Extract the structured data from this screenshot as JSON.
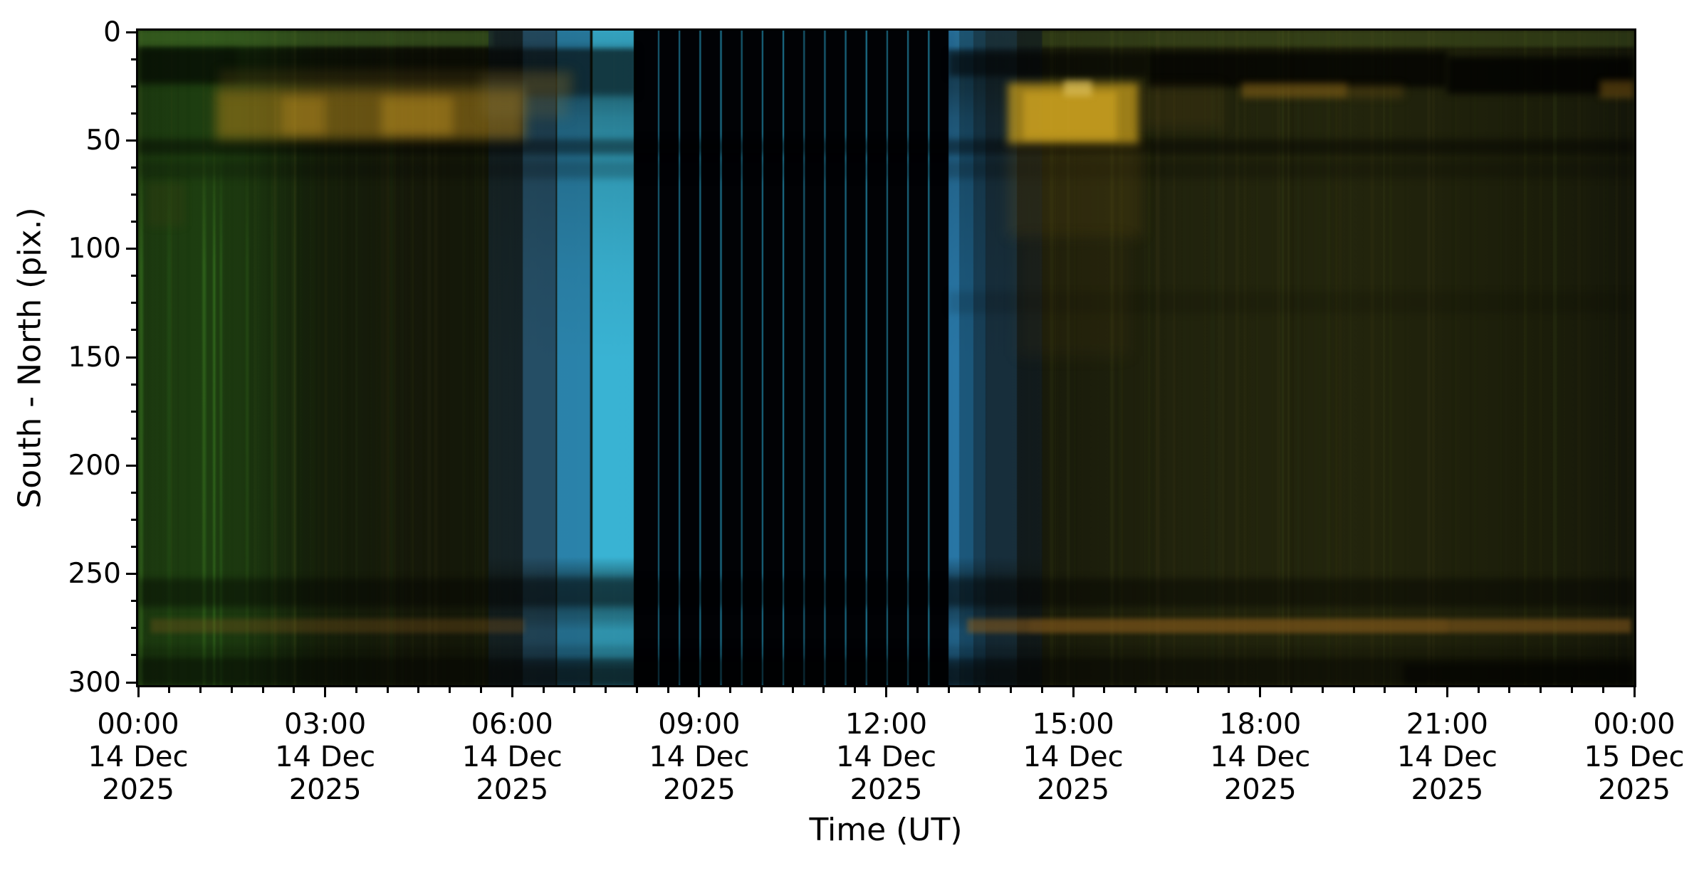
{
  "figure": {
    "background": "#ffffff",
    "spine_color": "#000000",
    "text_color": "#000000"
  },
  "chart_data": {
    "type": "heatmap",
    "subtype": "keogram",
    "title": "",
    "xlabel": "Time (UT)",
    "ylabel": "South - North (pix.)",
    "x_range_hours": [
      0,
      24
    ],
    "y_range": [
      0,
      301
    ],
    "grid": false,
    "x_ticks": [
      {
        "time": "00:00",
        "date": "14 Dec",
        "year": "2025",
        "hour": 0
      },
      {
        "time": "03:00",
        "date": "14 Dec",
        "year": "2025",
        "hour": 3
      },
      {
        "time": "06:00",
        "date": "14 Dec",
        "year": "2025",
        "hour": 6
      },
      {
        "time": "09:00",
        "date": "14 Dec",
        "year": "2025",
        "hour": 9
      },
      {
        "time": "12:00",
        "date": "14 Dec",
        "year": "2025",
        "hour": 12
      },
      {
        "time": "15:00",
        "date": "14 Dec",
        "year": "2025",
        "hour": 15
      },
      {
        "time": "18:00",
        "date": "14 Dec",
        "year": "2025",
        "hour": 18
      },
      {
        "time": "21:00",
        "date": "14 Dec",
        "year": "2025",
        "hour": 21
      },
      {
        "time": "00:00",
        "date": "15 Dec",
        "year": "2025",
        "hour": 24
      }
    ],
    "y_ticks": [
      0,
      50,
      100,
      150,
      200,
      250,
      300
    ],
    "axes": {
      "x_minor_step_hours": 0.5,
      "y_minor_step": 12.5
    },
    "features": {
      "background_stops": [
        [
          0,
          "#17290e"
        ],
        [
          1.1,
          "#1a3110"
        ],
        [
          2.6,
          "#15200b"
        ],
        [
          4.3,
          "#16190a"
        ],
        [
          5.6,
          "#141809"
        ],
        [
          7.9,
          "#0a0d06"
        ],
        [
          8.0,
          "#000000"
        ],
        [
          13.0,
          "#000000"
        ],
        [
          13.1,
          "#0e1008"
        ],
        [
          14.6,
          "#191b0b"
        ],
        [
          16.5,
          "#21230d"
        ],
        [
          19.5,
          "#23250d"
        ],
        [
          22.0,
          "#1d1f0b"
        ],
        [
          23.3,
          "#191b0a"
        ],
        [
          24,
          "#13150a"
        ]
      ],
      "green_glow": {
        "t0": 0,
        "t1": 2.8,
        "color": "#224c12",
        "alpha_stops": [
          [
            0,
            0.42
          ],
          [
            0.9,
            0.5
          ],
          [
            1.7,
            0.38
          ],
          [
            2.8,
            0
          ]
        ]
      },
      "green_streaks": [
        [
          0.05,
          6,
          0.28
        ],
        [
          1.06,
          5,
          0.3
        ],
        [
          1.22,
          3,
          0.45
        ],
        [
          1.33,
          2.5,
          0.35
        ],
        [
          0.5,
          6,
          0.12
        ],
        [
          1.75,
          4,
          0.15
        ],
        [
          2.15,
          3,
          0.12
        ],
        [
          2.5,
          2,
          0.08
        ]
      ],
      "green_streak_color": "#46a62c",
      "top_rows": [
        [
          0,
          5.7,
          "#4f7e2e",
          0.45
        ],
        [
          13.1,
          24,
          "#5c7c30",
          0.3
        ]
      ],
      "blue_profile": [
        [
          0,
          0.9
        ],
        [
          7,
          0.85
        ],
        [
          10,
          0.5
        ],
        [
          26,
          0.5
        ],
        [
          40,
          0.68
        ],
        [
          70,
          0.85
        ],
        [
          110,
          0.95
        ],
        [
          150,
          1
        ],
        [
          242,
          1
        ],
        [
          252,
          0.55
        ],
        [
          262,
          0.5
        ],
        [
          270,
          0.62
        ],
        [
          276,
          0.8
        ],
        [
          288,
          0.78
        ],
        [
          294,
          0.45
        ],
        [
          301,
          0.4
        ]
      ],
      "blue_columns": [
        [
          5.62,
          6.17,
          "#223a46",
          0.45
        ],
        [
          6.17,
          6.7,
          "#2c5e7c",
          0.8
        ],
        [
          6.72,
          7.25,
          "#2f93c0",
          0.88
        ],
        [
          7.29,
          7.95,
          "#3cbcde",
          0.95
        ],
        [
          13.0,
          13.18,
          "#2b7fb2",
          0.92
        ],
        [
          13.18,
          13.4,
          "#1f648e",
          0.85
        ],
        [
          13.4,
          13.6,
          "#1b4a68",
          0.8
        ],
        [
          13.6,
          14.1,
          "#1c3a4e",
          0.72
        ],
        [
          14.1,
          14.5,
          "#17262e",
          0.45
        ]
      ],
      "black_zone": {
        "t0": 7.97,
        "t1": 13.0,
        "color": "#010205"
      },
      "cyan_lines": {
        "start": 8.35,
        "step": 0.33333,
        "count": 14,
        "width": 2.2,
        "color": "#2286a6",
        "alpha": 0.9
      },
      "dark_lanes": [
        [
          0,
          6.2,
          8,
          24,
          0.5
        ],
        [
          0,
          1.6,
          8,
          25,
          0.25
        ],
        [
          6.2,
          8,
          8,
          30,
          0.4
        ],
        [
          13.0,
          16.2,
          10,
          21,
          0.55
        ],
        [
          16.2,
          21,
          9.5,
          26,
          0.75
        ],
        [
          21,
          24,
          12,
          29,
          0.8
        ],
        [
          0,
          24,
          50,
          57,
          0.42
        ],
        [
          0,
          24,
          60,
          68,
          0.2
        ],
        [
          13,
          24,
          120,
          130,
          0.12
        ],
        [
          0,
          24,
          252,
          265,
          0.4
        ],
        [
          0,
          24,
          283,
          287,
          0.18
        ],
        [
          0,
          24,
          288,
          301,
          0.5
        ],
        [
          20.3,
          24,
          291,
          301,
          0.5
        ]
      ],
      "gold_blobs": [
        [
          1.25,
          6.2,
          27,
          50,
          "#b8871c",
          0.5,
          8
        ],
        [
          2.3,
          3.0,
          30,
          48,
          "#cf9d24",
          0.3,
          7
        ],
        [
          3.9,
          5.05,
          30,
          48,
          "#d2a126",
          0.35,
          7
        ],
        [
          1.3,
          7.0,
          18,
          30,
          "#6d5316",
          0.25,
          7
        ],
        [
          5.5,
          6.9,
          20,
          40,
          "#8a7a46",
          0.22,
          8
        ],
        [
          13.95,
          16.05,
          24,
          52,
          "#c79e1e",
          0.75,
          6
        ],
        [
          14.2,
          15.7,
          28,
          50,
          "#d8ab22",
          0.55,
          5
        ],
        [
          14.85,
          15.3,
          23,
          30,
          "#e8cc66",
          0.6,
          4
        ],
        [
          13.95,
          16.1,
          52,
          95,
          "#8a6a16",
          0.18,
          9
        ],
        [
          14.1,
          15.9,
          95,
          150,
          "#6a5212",
          0.1,
          10
        ],
        [
          16.1,
          17.4,
          25,
          45,
          "#6a4e14",
          0.18,
          8
        ],
        [
          17.7,
          19.4,
          24,
          31,
          "#a5761a",
          0.45,
          5
        ],
        [
          19.4,
          20.3,
          25,
          31,
          "#8a6216",
          0.25,
          6
        ],
        [
          23.45,
          24,
          23,
          31,
          "#a5761a",
          0.4,
          5
        ],
        [
          0.15,
          0.75,
          70,
          90,
          "#5a4414",
          0.15,
          6
        ]
      ],
      "orange_line": {
        "y0": 270.5,
        "y1": 277,
        "color": "#8a5c1e",
        "blur": 3,
        "segments": [
          [
            0.2,
            6.2,
            0.3
          ],
          [
            13.3,
            23.95,
            0.55
          ],
          [
            14.3,
            21.0,
            0.15
          ]
        ]
      },
      "texture": {
        "count": 300,
        "seed": 7,
        "colors": [
          "#7a8834",
          "#33591f",
          "#0b1005",
          "#8a7a28",
          "#44661f"
        ]
      }
    }
  }
}
